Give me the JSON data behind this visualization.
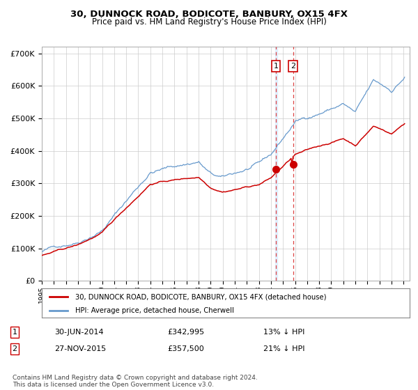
{
  "title1": "30, DUNNOCK ROAD, BODICOTE, BANBURY, OX15 4FX",
  "title2": "Price paid vs. HM Land Registry's House Price Index (HPI)",
  "legend1": "30, DUNNOCK ROAD, BODICOTE, BANBURY, OX15 4FX (detached house)",
  "legend2": "HPI: Average price, detached house, Cherwell",
  "footnote": "Contains HM Land Registry data © Crown copyright and database right 2024.\nThis data is licensed under the Open Government Licence v3.0.",
  "purchase1_date": "30-JUN-2014",
  "purchase1_price": 342995,
  "purchase2_date": "27-NOV-2015",
  "purchase2_price": 357500,
  "purchase1_pct": "13% ↓ HPI",
  "purchase2_pct": "21% ↓ HPI",
  "hpi_color": "#6699cc",
  "property_color": "#cc0000",
  "vline_color": "#dd4444",
  "grid_color": "#cccccc",
  "ylim": [
    0,
    720000
  ],
  "yticks": [
    0,
    100000,
    200000,
    300000,
    400000,
    500000,
    600000,
    700000
  ],
  "ytick_labels": [
    "£0",
    "£100K",
    "£200K",
    "£300K",
    "£400K",
    "£500K",
    "£600K",
    "£700K"
  ]
}
